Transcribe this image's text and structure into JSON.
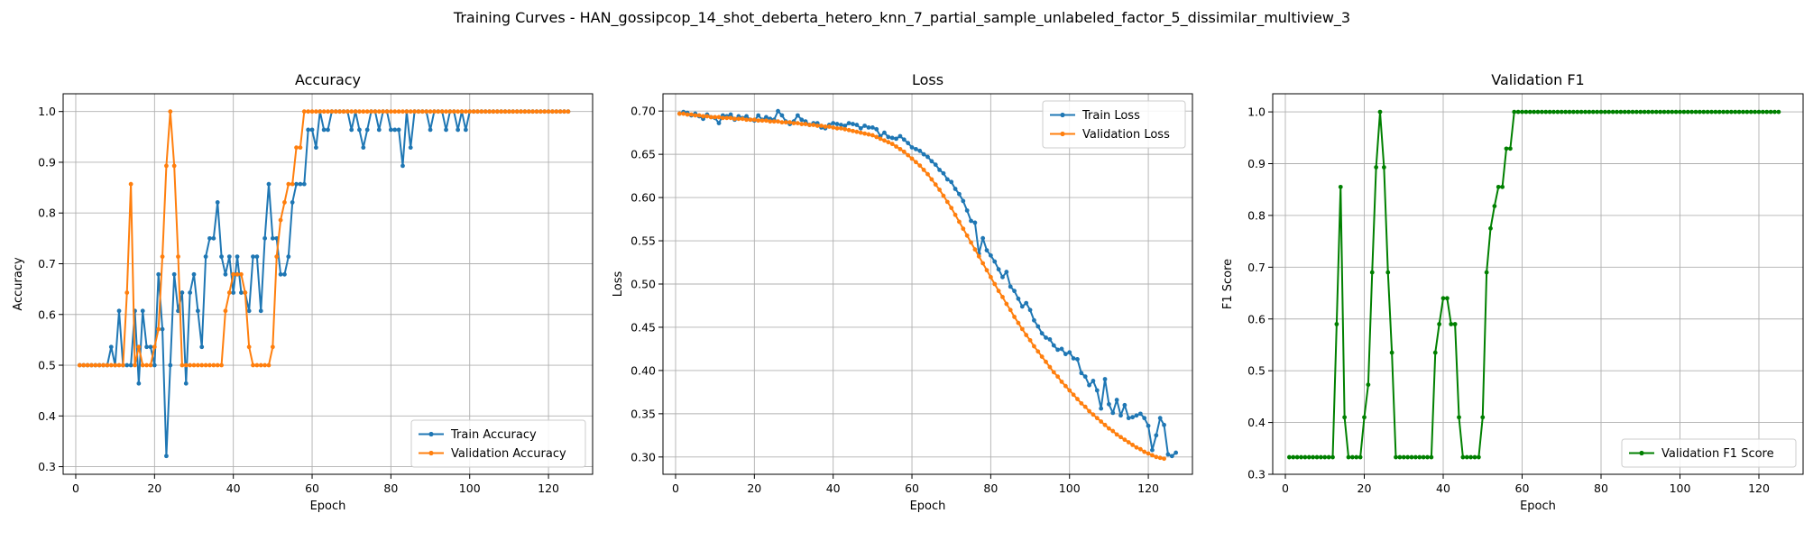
{
  "figure": {
    "suptitle": "Training Curves - HAN_gossipcop_14_shot_deberta_hetero_knn_7_partial_sample_unlabeled_factor_5_dissimilar_multiview_3"
  },
  "colors": {
    "blue": "#1f77b4",
    "orange": "#ff7f0e",
    "green": "#008000",
    "grid": "#b0b0b0"
  },
  "chart_data": [
    {
      "type": "line",
      "title": "Accuracy",
      "xlabel": "Epoch",
      "ylabel": "Accuracy",
      "xlim": [
        -3.2,
        131.2
      ],
      "ylim": [
        0.285,
        1.035
      ],
      "xticks": [
        0,
        20,
        40,
        60,
        80,
        100,
        120
      ],
      "yticks": [
        0.3,
        0.4,
        0.5,
        0.6,
        0.7,
        0.8,
        0.9,
        1.0
      ],
      "grid": true,
      "legend": "lower right",
      "series": [
        {
          "name": "Train Accuracy",
          "color": "#1f77b4",
          "values": [
            0.5,
            0.5,
            0.5,
            0.5,
            0.5,
            0.5,
            0.5,
            0.5,
            0.536,
            0.5,
            0.607,
            0.5,
            0.5,
            0.5,
            0.607,
            0.464,
            0.607,
            0.536,
            0.536,
            0.5,
            0.679,
            0.571,
            0.321,
            0.5,
            0.679,
            0.607,
            0.643,
            0.464,
            0.643,
            0.679,
            0.607,
            0.536,
            0.714,
            0.75,
            0.75,
            0.821,
            0.714,
            0.679,
            0.714,
            0.643,
            0.714,
            0.643,
            0.643,
            0.607,
            0.714,
            0.714,
            0.607,
            0.75,
            0.857,
            0.75,
            0.75,
            0.679,
            0.679,
            0.714,
            0.821,
            0.857,
            0.857,
            0.857,
            0.964,
            0.964,
            0.929,
            1.0,
            0.964,
            0.964,
            1.0,
            1.0,
            1.0,
            1.0,
            1.0,
            0.964,
            1.0,
            0.964,
            0.929,
            0.964,
            1.0,
            1.0,
            0.964,
            1.0,
            1.0,
            0.964,
            0.964,
            0.964,
            0.893,
            1.0,
            0.929,
            1.0,
            1.0,
            1.0,
            1.0,
            0.964,
            1.0,
            1.0,
            1.0,
            0.964,
            1.0,
            1.0,
            0.964,
            1.0,
            0.964,
            1.0,
            1.0,
            1.0,
            1.0,
            1.0,
            1.0,
            1.0,
            1.0,
            1.0,
            1.0,
            1.0,
            1.0,
            1.0,
            1.0,
            1.0,
            1.0,
            1.0,
            1.0,
            1.0,
            1.0,
            1.0,
            1.0,
            1.0,
            1.0,
            1.0,
            1.0
          ]
        },
        {
          "name": "Validation Accuracy",
          "color": "#ff7f0e",
          "values": [
            0.5,
            0.5,
            0.5,
            0.5,
            0.5,
            0.5,
            0.5,
            0.5,
            0.5,
            0.5,
            0.5,
            0.5,
            0.643,
            0.857,
            0.5,
            0.536,
            0.5,
            0.5,
            0.5,
            0.536,
            0.571,
            0.714,
            0.893,
            1.0,
            0.893,
            0.714,
            0.5,
            0.5,
            0.5,
            0.5,
            0.5,
            0.5,
            0.5,
            0.5,
            0.5,
            0.5,
            0.5,
            0.607,
            0.643,
            0.679,
            0.679,
            0.679,
            0.643,
            0.536,
            0.5,
            0.5,
            0.5,
            0.5,
            0.5,
            0.536,
            0.714,
            0.786,
            0.821,
            0.857,
            0.857,
            0.929,
            0.929,
            1.0,
            1.0,
            1.0,
            1.0,
            1.0,
            1.0,
            1.0,
            1.0,
            1.0,
            1.0,
            1.0,
            1.0,
            1.0,
            1.0,
            1.0,
            1.0,
            1.0,
            1.0,
            1.0,
            1.0,
            1.0,
            1.0,
            1.0,
            1.0,
            1.0,
            1.0,
            1.0,
            1.0,
            1.0,
            1.0,
            1.0,
            1.0,
            1.0,
            1.0,
            1.0,
            1.0,
            1.0,
            1.0,
            1.0,
            1.0,
            1.0,
            1.0,
            1.0,
            1.0,
            1.0,
            1.0,
            1.0,
            1.0,
            1.0,
            1.0,
            1.0,
            1.0,
            1.0,
            1.0,
            1.0,
            1.0,
            1.0,
            1.0,
            1.0,
            1.0,
            1.0,
            1.0,
            1.0,
            1.0,
            1.0,
            1.0,
            1.0,
            1.0
          ]
        }
      ]
    },
    {
      "type": "line",
      "title": "Loss",
      "xlabel": "Epoch",
      "ylabel": "Loss",
      "xlim": [
        -3.2,
        131.2
      ],
      "ylim": [
        0.28,
        0.72
      ],
      "xticks": [
        0,
        20,
        40,
        60,
        80,
        100,
        120
      ],
      "yticks": [
        0.3,
        0.35,
        0.4,
        0.45,
        0.5,
        0.55,
        0.6,
        0.65,
        0.7
      ],
      "grid": true,
      "legend": "upper right",
      "series": [
        {
          "name": "Train Loss",
          "color": "#1f77b4",
          "values": [
            0.697,
            0.699,
            0.698,
            0.695,
            0.697,
            0.694,
            0.691,
            0.696,
            0.693,
            0.692,
            0.686,
            0.695,
            0.694,
            0.696,
            0.69,
            0.694,
            0.692,
            0.694,
            0.69,
            0.689,
            0.695,
            0.69,
            0.693,
            0.691,
            0.69,
            0.7,
            0.695,
            0.688,
            0.685,
            0.688,
            0.695,
            0.69,
            0.688,
            0.684,
            0.686,
            0.686,
            0.681,
            0.68,
            0.684,
            0.686,
            0.685,
            0.684,
            0.683,
            0.686,
            0.685,
            0.684,
            0.68,
            0.683,
            0.681,
            0.681,
            0.679,
            0.671,
            0.675,
            0.67,
            0.669,
            0.668,
            0.671,
            0.667,
            0.663,
            0.658,
            0.656,
            0.654,
            0.65,
            0.647,
            0.642,
            0.638,
            0.632,
            0.628,
            0.621,
            0.618,
            0.61,
            0.604,
            0.596,
            0.585,
            0.573,
            0.571,
            0.535,
            0.553,
            0.539,
            0.533,
            0.526,
            0.517,
            0.508,
            0.514,
            0.497,
            0.492,
            0.483,
            0.474,
            0.478,
            0.47,
            0.458,
            0.451,
            0.443,
            0.438,
            0.436,
            0.429,
            0.424,
            0.425,
            0.419,
            0.421,
            0.414,
            0.413,
            0.397,
            0.393,
            0.383,
            0.388,
            0.377,
            0.356,
            0.39,
            0.361,
            0.351,
            0.366,
            0.348,
            0.36,
            0.345,
            0.346,
            0.348,
            0.35,
            0.345,
            0.336,
            0.308,
            0.325,
            0.345,
            0.337,
            0.303,
            0.301,
            0.305
          ]
        },
        {
          "name": "Validation Loss",
          "color": "#ff7f0e",
          "values": [
            0.697,
            0.697,
            0.696,
            0.696,
            0.695,
            0.695,
            0.694,
            0.694,
            0.693,
            0.693,
            0.693,
            0.692,
            0.692,
            0.692,
            0.691,
            0.691,
            0.691,
            0.69,
            0.69,
            0.69,
            0.689,
            0.689,
            0.689,
            0.688,
            0.688,
            0.688,
            0.687,
            0.687,
            0.687,
            0.686,
            0.686,
            0.685,
            0.685,
            0.684,
            0.684,
            0.683,
            0.683,
            0.682,
            0.682,
            0.681,
            0.68,
            0.68,
            0.679,
            0.678,
            0.677,
            0.676,
            0.675,
            0.674,
            0.673,
            0.672,
            0.67,
            0.668,
            0.666,
            0.664,
            0.662,
            0.659,
            0.656,
            0.653,
            0.649,
            0.645,
            0.641,
            0.637,
            0.632,
            0.627,
            0.621,
            0.615,
            0.609,
            0.602,
            0.595,
            0.588,
            0.58,
            0.572,
            0.564,
            0.556,
            0.548,
            0.54,
            0.532,
            0.524,
            0.516,
            0.508,
            0.5,
            0.492,
            0.485,
            0.477,
            0.47,
            0.462,
            0.455,
            0.448,
            0.441,
            0.435,
            0.428,
            0.422,
            0.416,
            0.41,
            0.404,
            0.398,
            0.393,
            0.387,
            0.382,
            0.377,
            0.372,
            0.367,
            0.362,
            0.358,
            0.353,
            0.349,
            0.345,
            0.341,
            0.337,
            0.333,
            0.33,
            0.326,
            0.323,
            0.32,
            0.317,
            0.314,
            0.311,
            0.309,
            0.306,
            0.304,
            0.302,
            0.3,
            0.299,
            0.298
          ]
        }
      ]
    },
    {
      "type": "line",
      "title": "Validation F1",
      "xlabel": "Epoch",
      "ylabel": "F1 Score",
      "xlim": [
        -3.2,
        131.2
      ],
      "ylim": [
        0.3,
        1.035
      ],
      "xticks": [
        0,
        20,
        40,
        60,
        80,
        100,
        120
      ],
      "yticks": [
        0.3,
        0.4,
        0.5,
        0.6,
        0.7,
        0.8,
        0.9,
        1.0
      ],
      "grid": true,
      "legend": "lower right",
      "series": [
        {
          "name": "Validation F1 Score",
          "color": "#008000",
          "values": [
            0.333,
            0.333,
            0.333,
            0.333,
            0.333,
            0.333,
            0.333,
            0.333,
            0.333,
            0.333,
            0.333,
            0.333,
            0.59,
            0.855,
            0.41,
            0.333,
            0.333,
            0.333,
            0.333,
            0.41,
            0.473,
            0.69,
            0.893,
            1.0,
            0.893,
            0.69,
            0.535,
            0.333,
            0.333,
            0.333,
            0.333,
            0.333,
            0.333,
            0.333,
            0.333,
            0.333,
            0.333,
            0.535,
            0.59,
            0.64,
            0.64,
            0.59,
            0.59,
            0.41,
            0.333,
            0.333,
            0.333,
            0.333,
            0.333,
            0.41,
            0.69,
            0.775,
            0.818,
            0.855,
            0.855,
            0.929,
            0.929,
            1.0,
            1.0,
            1.0,
            1.0,
            1.0,
            1.0,
            1.0,
            1.0,
            1.0,
            1.0,
            1.0,
            1.0,
            1.0,
            1.0,
            1.0,
            1.0,
            1.0,
            1.0,
            1.0,
            1.0,
            1.0,
            1.0,
            1.0,
            1.0,
            1.0,
            1.0,
            1.0,
            1.0,
            1.0,
            1.0,
            1.0,
            1.0,
            1.0,
            1.0,
            1.0,
            1.0,
            1.0,
            1.0,
            1.0,
            1.0,
            1.0,
            1.0,
            1.0,
            1.0,
            1.0,
            1.0,
            1.0,
            1.0,
            1.0,
            1.0,
            1.0,
            1.0,
            1.0,
            1.0,
            1.0,
            1.0,
            1.0,
            1.0,
            1.0,
            1.0,
            1.0,
            1.0,
            1.0,
            1.0,
            1.0,
            1.0,
            1.0,
            1.0
          ]
        }
      ]
    }
  ]
}
